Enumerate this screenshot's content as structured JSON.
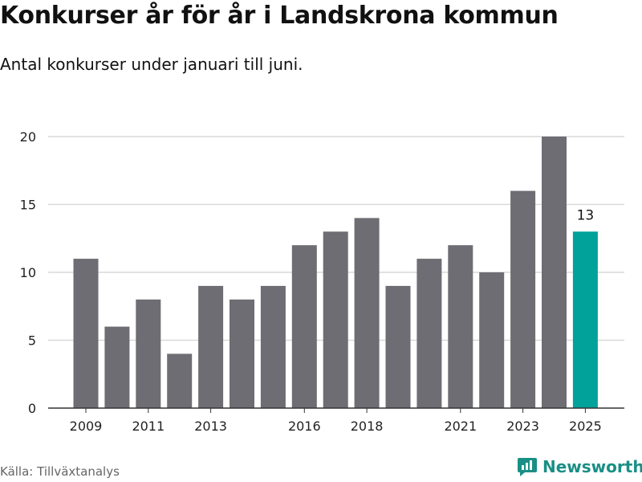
{
  "header": {
    "title": "Konkurser år för år i Landskrona kommun",
    "subtitle": "Antal konkurser under januari till juni."
  },
  "footer": {
    "source": "Källa: Tillväxtanalys",
    "brand": "Newsworthy"
  },
  "colors": {
    "bar": "#6e6d73",
    "highlight": "#00a29a",
    "grid": "#d9d9d9",
    "axis": "#333333",
    "brand": "#1a8f86"
  },
  "chart_data": {
    "type": "bar",
    "categories": [
      "2009",
      "2010",
      "2011",
      "2012",
      "2013",
      "2014",
      "2015",
      "2016",
      "2017",
      "2018",
      "2019",
      "2020",
      "2021",
      "2022",
      "2023",
      "2024",
      "2025"
    ],
    "values": [
      11,
      6,
      8,
      4,
      9,
      8,
      9,
      12,
      13,
      14,
      9,
      11,
      12,
      10,
      16,
      20,
      13
    ],
    "x_tick_labels": [
      "2009",
      "2011",
      "2013",
      "2016",
      "2018",
      "2021",
      "2023",
      "2025"
    ],
    "y_ticks": [
      0,
      5,
      10,
      15,
      20
    ],
    "ylim": [
      0,
      20
    ],
    "highlight_category": "2025",
    "data_labels": [
      {
        "category": "2025",
        "text": "13"
      }
    ],
    "title": "Konkurser år för år i Landskrona kommun",
    "subtitle": "Antal konkurser under januari till juni.",
    "xlabel": "",
    "ylabel": "",
    "grid": true,
    "legend": "none"
  }
}
